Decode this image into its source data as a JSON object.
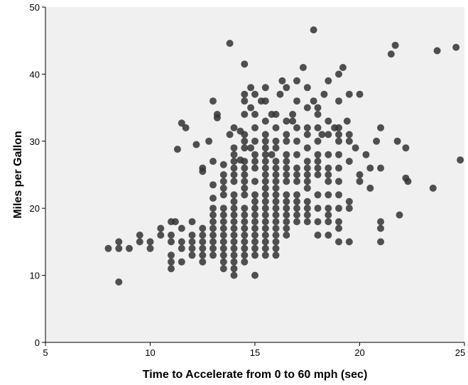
{
  "chart_data": {
    "type": "scatter",
    "title": "",
    "xlabel": "Time to Accelerate from 0 to 60 mph (sec)",
    "ylabel": "Miles per Gallon",
    "xlim": [
      5,
      25
    ],
    "ylim": [
      0,
      50
    ],
    "xticks": [
      "5",
      "10",
      "15",
      "20",
      "25"
    ],
    "yticks": [
      "0",
      "10",
      "20",
      "30",
      "40",
      "50"
    ],
    "grid": false,
    "colors": {
      "background": "#f0f0f0",
      "marker": "#333333"
    },
    "series": [
      {
        "points": [
          [
            8.0,
            14
          ],
          [
            8.5,
            15
          ],
          [
            8.5,
            14
          ],
          [
            8.5,
            9
          ],
          [
            9.0,
            14
          ],
          [
            9.5,
            16
          ],
          [
            9.5,
            15
          ],
          [
            10.0,
            15
          ],
          [
            10.0,
            14
          ],
          [
            10.5,
            17
          ],
          [
            10.5,
            16
          ],
          [
            11.0,
            18
          ],
          [
            11.0,
            16
          ],
          [
            11.0,
            15
          ],
          [
            11.0,
            13
          ],
          [
            11.0,
            12
          ],
          [
            11.0,
            11
          ],
          [
            11.2,
            18
          ],
          [
            11.3,
            28.8
          ],
          [
            11.5,
            32.7
          ],
          [
            11.5,
            17
          ],
          [
            11.5,
            15
          ],
          [
            11.5,
            14
          ],
          [
            11.5,
            12
          ],
          [
            11.7,
            32
          ],
          [
            12.0,
            18
          ],
          [
            12.0,
            16
          ],
          [
            12.0,
            15
          ],
          [
            12.0,
            14
          ],
          [
            12.0,
            13
          ],
          [
            12.2,
            29.5
          ],
          [
            12.5,
            26
          ],
          [
            12.5,
            25.5
          ],
          [
            12.5,
            17
          ],
          [
            12.5,
            16
          ],
          [
            12.5,
            15
          ],
          [
            12.5,
            14
          ],
          [
            12.5,
            13
          ],
          [
            12.5,
            12
          ],
          [
            12.8,
            30
          ],
          [
            13.0,
            36
          ],
          [
            13.0,
            27
          ],
          [
            13.0,
            23.5
          ],
          [
            13.0,
            21.5
          ],
          [
            13.0,
            20
          ],
          [
            13.0,
            19
          ],
          [
            13.0,
            18
          ],
          [
            13.0,
            17
          ],
          [
            13.0,
            16
          ],
          [
            13.0,
            15
          ],
          [
            13.0,
            14
          ],
          [
            13.0,
            13
          ],
          [
            13.2,
            34
          ],
          [
            13.2,
            33.5
          ],
          [
            13.5,
            26.5
          ],
          [
            13.5,
            25
          ],
          [
            13.5,
            24
          ],
          [
            13.5,
            23
          ],
          [
            13.5,
            22
          ],
          [
            13.5,
            20
          ],
          [
            13.5,
            19
          ],
          [
            13.5,
            18
          ],
          [
            13.5,
            17
          ],
          [
            13.5,
            16
          ],
          [
            13.5,
            15
          ],
          [
            13.5,
            14
          ],
          [
            13.5,
            13
          ],
          [
            13.5,
            12
          ],
          [
            13.5,
            11
          ],
          [
            13.8,
            44.6
          ],
          [
            13.8,
            31
          ],
          [
            14.0,
            32
          ],
          [
            14.0,
            29
          ],
          [
            14.0,
            28
          ],
          [
            14.0,
            27
          ],
          [
            14.0,
            26
          ],
          [
            14.0,
            25
          ],
          [
            14.0,
            24
          ],
          [
            14.0,
            22
          ],
          [
            14.0,
            21
          ],
          [
            14.0,
            20
          ],
          [
            14.0,
            19
          ],
          [
            14.0,
            18
          ],
          [
            14.0,
            17
          ],
          [
            14.0,
            16
          ],
          [
            14.0,
            15
          ],
          [
            14.0,
            14
          ],
          [
            14.0,
            13
          ],
          [
            14.0,
            12
          ],
          [
            14.0,
            11
          ],
          [
            14.0,
            10
          ],
          [
            14.3,
            31.5
          ],
          [
            14.3,
            27.2
          ],
          [
            14.5,
            41.5
          ],
          [
            14.5,
            37
          ],
          [
            14.5,
            36
          ],
          [
            14.5,
            34
          ],
          [
            14.5,
            31
          ],
          [
            14.5,
            30
          ],
          [
            14.5,
            29
          ],
          [
            14.5,
            27
          ],
          [
            14.5,
            26
          ],
          [
            14.5,
            25
          ],
          [
            14.5,
            24
          ],
          [
            14.5,
            23
          ],
          [
            14.5,
            22
          ],
          [
            14.5,
            20
          ],
          [
            14.5,
            19
          ],
          [
            14.5,
            18
          ],
          [
            14.5,
            17
          ],
          [
            14.5,
            16
          ],
          [
            14.5,
            15
          ],
          [
            14.5,
            14
          ],
          [
            14.5,
            13
          ],
          [
            14.5,
            12
          ],
          [
            14.8,
            38
          ],
          [
            14.8,
            35
          ],
          [
            14.8,
            29
          ],
          [
            15.0,
            37
          ],
          [
            15.0,
            34
          ],
          [
            15.0,
            32
          ],
          [
            15.0,
            30
          ],
          [
            15.0,
            28
          ],
          [
            15.0,
            27
          ],
          [
            15.0,
            26
          ],
          [
            15.0,
            24
          ],
          [
            15.0,
            22
          ],
          [
            15.0,
            21
          ],
          [
            15.0,
            20
          ],
          [
            15.0,
            19
          ],
          [
            15.0,
            18
          ],
          [
            15.0,
            17
          ],
          [
            15.0,
            16
          ],
          [
            15.0,
            15
          ],
          [
            15.0,
            14
          ],
          [
            15.0,
            13
          ],
          [
            15.0,
            10
          ],
          [
            15.3,
            36
          ],
          [
            15.5,
            38
          ],
          [
            15.5,
            36
          ],
          [
            15.5,
            33
          ],
          [
            15.5,
            31
          ],
          [
            15.5,
            30
          ],
          [
            15.5,
            29
          ],
          [
            15.5,
            28
          ],
          [
            15.5,
            27
          ],
          [
            15.5,
            26
          ],
          [
            15.5,
            25
          ],
          [
            15.5,
            24
          ],
          [
            15.5,
            23
          ],
          [
            15.5,
            22
          ],
          [
            15.5,
            21
          ],
          [
            15.5,
            20
          ],
          [
            15.5,
            19
          ],
          [
            15.5,
            18
          ],
          [
            15.5,
            17
          ],
          [
            15.5,
            16
          ],
          [
            15.5,
            15
          ],
          [
            15.5,
            14
          ],
          [
            15.5,
            13
          ],
          [
            15.8,
            34
          ],
          [
            15.8,
            28
          ],
          [
            16.0,
            34
          ],
          [
            16.0,
            32
          ],
          [
            16.0,
            30
          ],
          [
            16.0,
            29
          ],
          [
            16.0,
            27
          ],
          [
            16.0,
            26
          ],
          [
            16.0,
            25
          ],
          [
            16.0,
            24
          ],
          [
            16.0,
            23
          ],
          [
            16.0,
            22
          ],
          [
            16.0,
            21
          ],
          [
            16.0,
            20
          ],
          [
            16.0,
            19
          ],
          [
            16.0,
            18
          ],
          [
            16.0,
            17
          ],
          [
            16.0,
            16
          ],
          [
            16.0,
            15
          ],
          [
            16.0,
            14
          ],
          [
            16.0,
            13
          ],
          [
            16.2,
            37
          ],
          [
            16.3,
            39
          ],
          [
            16.5,
            38
          ],
          [
            16.5,
            33
          ],
          [
            16.5,
            31
          ],
          [
            16.5,
            30
          ],
          [
            16.5,
            28
          ],
          [
            16.5,
            27
          ],
          [
            16.5,
            26
          ],
          [
            16.5,
            25
          ],
          [
            16.5,
            24
          ],
          [
            16.5,
            22
          ],
          [
            16.5,
            21
          ],
          [
            16.5,
            20
          ],
          [
            16.5,
            19
          ],
          [
            16.5,
            18
          ],
          [
            16.5,
            17
          ],
          [
            16.5,
            16
          ],
          [
            16.8,
            34
          ],
          [
            16.8,
            33
          ],
          [
            17.0,
            39
          ],
          [
            17.0,
            36
          ],
          [
            17.0,
            32
          ],
          [
            17.0,
            30
          ],
          [
            17.0,
            28
          ],
          [
            17.0,
            26
          ],
          [
            17.0,
            25
          ],
          [
            17.0,
            24
          ],
          [
            17.0,
            22
          ],
          [
            17.0,
            21
          ],
          [
            17.0,
            20
          ],
          [
            17.0,
            19
          ],
          [
            17.0,
            18
          ],
          [
            17.3,
            41
          ],
          [
            17.5,
            38
          ],
          [
            17.5,
            35
          ],
          [
            17.5,
            32
          ],
          [
            17.5,
            31
          ],
          [
            17.5,
            29
          ],
          [
            17.5,
            27
          ],
          [
            17.5,
            26
          ],
          [
            17.5,
            25
          ],
          [
            17.5,
            24
          ],
          [
            17.5,
            23
          ],
          [
            17.5,
            21
          ],
          [
            17.5,
            20
          ],
          [
            17.5,
            19
          ],
          [
            17.5,
            18
          ],
          [
            17.8,
            46.6
          ],
          [
            17.8,
            36
          ],
          [
            18.0,
            35
          ],
          [
            18.0,
            34
          ],
          [
            18.0,
            32
          ],
          [
            18.0,
            30
          ],
          [
            18.0,
            28
          ],
          [
            18.0,
            27
          ],
          [
            18.0,
            26
          ],
          [
            18.0,
            25
          ],
          [
            18.0,
            22
          ],
          [
            18.0,
            20
          ],
          [
            18.0,
            18
          ],
          [
            18.0,
            16
          ],
          [
            18.2,
            31
          ],
          [
            18.3,
            37
          ],
          [
            18.5,
            39
          ],
          [
            18.5,
            33
          ],
          [
            18.5,
            31
          ],
          [
            18.5,
            28
          ],
          [
            18.5,
            26
          ],
          [
            18.5,
            25
          ],
          [
            18.5,
            24
          ],
          [
            18.5,
            22
          ],
          [
            18.5,
            20
          ],
          [
            18.5,
            19
          ],
          [
            18.5,
            18
          ],
          [
            18.5,
            16
          ],
          [
            18.8,
            32
          ],
          [
            19.0,
            40
          ],
          [
            19.0,
            36
          ],
          [
            19.0,
            32
          ],
          [
            19.0,
            31
          ],
          [
            19.0,
            30
          ],
          [
            19.0,
            28
          ],
          [
            19.0,
            26
          ],
          [
            19.0,
            24
          ],
          [
            19.0,
            22
          ],
          [
            19.0,
            20
          ],
          [
            19.0,
            18
          ],
          [
            19.0,
            17
          ],
          [
            19.0,
            15
          ],
          [
            19.2,
            41
          ],
          [
            19.4,
            33
          ],
          [
            19.5,
            37
          ],
          [
            19.5,
            31
          ],
          [
            19.5,
            30
          ],
          [
            19.5,
            27
          ],
          [
            19.5,
            21
          ],
          [
            19.5,
            20
          ],
          [
            19.5,
            15
          ],
          [
            19.8,
            29
          ],
          [
            20.0,
            37
          ],
          [
            20.0,
            25
          ],
          [
            20.0,
            24
          ],
          [
            20.3,
            28
          ],
          [
            20.5,
            26
          ],
          [
            20.5,
            23
          ],
          [
            20.8,
            30
          ],
          [
            21.0,
            32
          ],
          [
            21.0,
            26
          ],
          [
            21.0,
            18
          ],
          [
            21.0,
            17
          ],
          [
            21.0,
            15
          ],
          [
            21.5,
            43
          ],
          [
            21.7,
            44.3
          ],
          [
            21.8,
            30
          ],
          [
            21.9,
            19
          ],
          [
            22.2,
            29
          ],
          [
            22.2,
            24.5
          ],
          [
            22.3,
            24
          ],
          [
            23.5,
            23
          ],
          [
            23.7,
            43.5
          ],
          [
            24.6,
            44
          ],
          [
            24.8,
            27.2
          ]
        ]
      }
    ]
  }
}
